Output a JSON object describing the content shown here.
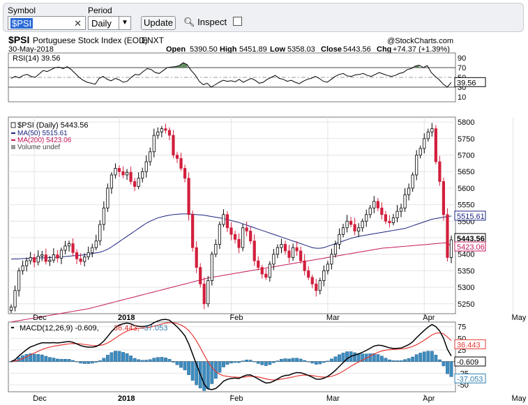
{
  "toolbar": {
    "symbol_label": "Symbol",
    "symbol_value": "$PSI",
    "period_label": "Period",
    "period_value": "Daily",
    "update_label": "Update",
    "inspect_label": "Inspect"
  },
  "header": {
    "ticker": "$PSI",
    "name": "Portuguese Stock Index (EOD)",
    "exchange": "ENXT",
    "date": "30-May-2018",
    "watermark": "@StockCharts.com",
    "open_label": "Open",
    "open": "5390.50",
    "high_label": "High",
    "high": "5451.89",
    "low_label": "Low",
    "low": "5358.03",
    "close_label": "Close",
    "close": "5443.56",
    "chg_label": "Chg",
    "chg": "+74.37 (+1.39%)"
  },
  "chart_data": [
    {
      "type": "line",
      "panel": "rsi",
      "title": "RSI(14) 39.56",
      "ylim": [
        0,
        100
      ],
      "ticks": [
        "90",
        "70",
        "50",
        "30",
        "10"
      ],
      "tick_values": [
        90,
        70,
        50,
        30,
        10
      ],
      "reference_lines": [
        70,
        50,
        30
      ],
      "last_value_label": "39.56",
      "series": [
        {
          "values": [
            48,
            52,
            49,
            54,
            56,
            52,
            50,
            57,
            64,
            62,
            66,
            70,
            71,
            68,
            72,
            66,
            58,
            50,
            44,
            40,
            38,
            36,
            48,
            52,
            46,
            43,
            48,
            45,
            40,
            42,
            50,
            56,
            55,
            62,
            68,
            66,
            60,
            58,
            64,
            70,
            71,
            72,
            74,
            80,
            76,
            64,
            55,
            42,
            35,
            38,
            30,
            35,
            40,
            44,
            42,
            43,
            41,
            46,
            40,
            44,
            48,
            44,
            38,
            40,
            46,
            50,
            54,
            48,
            46,
            42,
            44,
            40,
            37,
            42,
            46,
            48,
            52,
            48,
            42,
            40,
            46,
            52,
            56,
            58,
            53,
            52,
            55,
            56,
            58,
            54,
            52,
            56,
            60,
            57,
            54,
            52,
            54,
            58,
            60,
            66,
            68,
            73,
            75,
            70,
            74,
            60,
            52,
            45,
            36,
            30,
            39.56
          ]
        }
      ]
    },
    {
      "type": "candlestick",
      "panel": "price",
      "legend": [
        "$PSI (Daily) 5443.56",
        "MA(50) 5515.61",
        "MA(200) 5423.06",
        "Volume undef"
      ],
      "ylim": [
        5220,
        5815
      ],
      "ticks": [
        "5800",
        "5750",
        "5700",
        "5650",
        "5600",
        "5550",
        "5500",
        "5450",
        "5400",
        "5350",
        "5300",
        "5250"
      ],
      "tick_values": [
        5800,
        5750,
        5700,
        5650,
        5600,
        5550,
        5500,
        5450,
        5400,
        5350,
        5300,
        5250
      ],
      "last_labels": {
        "close": "5443.56",
        "ma50": "5515.61",
        "ma200": "5423.06"
      },
      "close": [
        5240,
        5290,
        5350,
        5365,
        5380,
        5390,
        5376,
        5394,
        5398,
        5378,
        5382,
        5398,
        5388,
        5412,
        5425,
        5432,
        5405,
        5386,
        5378,
        5392,
        5405,
        5420,
        5440,
        5490,
        5540,
        5600,
        5640,
        5660,
        5650,
        5640,
        5648,
        5620,
        5605,
        5630,
        5650,
        5680,
        5710,
        5760,
        5770,
        5780,
        5775,
        5760,
        5700,
        5690,
        5660,
        5630,
        5520,
        5420,
        5360,
        5310,
        5250,
        5320,
        5400,
        5430,
        5490,
        5520,
        5480,
        5460,
        5445,
        5420,
        5480,
        5470,
        5440,
        5380,
        5360,
        5340,
        5330,
        5370,
        5400,
        5420,
        5430,
        5410,
        5390,
        5420,
        5410,
        5380,
        5350,
        5330,
        5310,
        5290,
        5320,
        5350,
        5370,
        5400,
        5430,
        5460,
        5480,
        5500,
        5490,
        5470,
        5480,
        5500,
        5520,
        5540,
        5560,
        5540,
        5520,
        5500,
        5495,
        5510,
        5530,
        5540,
        5580,
        5600,
        5640,
        5700,
        5720,
        5750,
        5770,
        5780,
        5680,
        5620,
        5520,
        5390,
        5443.56
      ],
      "ma50": [
        5385,
        5386,
        5386,
        5387,
        5387,
        5388,
        5388,
        5389,
        5389,
        5389,
        5390,
        5390,
        5391,
        5392,
        5393,
        5394,
        5395,
        5396,
        5397,
        5398,
        5400,
        5402,
        5404,
        5406,
        5410,
        5415,
        5422,
        5430,
        5438,
        5446,
        5454,
        5462,
        5470,
        5478,
        5486,
        5494,
        5500,
        5505,
        5510,
        5513,
        5516,
        5518,
        5520,
        5521,
        5522,
        5522,
        5522,
        5521,
        5520,
        5519,
        5518,
        5516,
        5514,
        5512,
        5510,
        5508,
        5505,
        5502,
        5499,
        5496,
        5492,
        5488,
        5484,
        5480,
        5476,
        5472,
        5468,
        5464,
        5460,
        5456,
        5452,
        5448,
        5444,
        5440,
        5436,
        5432,
        5428,
        5424,
        5420,
        5418,
        5418,
        5420,
        5424,
        5428,
        5432,
        5436,
        5440,
        5444,
        5448,
        5451,
        5454,
        5456,
        5458,
        5460,
        5462,
        5464,
        5466,
        5468,
        5470,
        5472,
        5474,
        5476,
        5478,
        5482,
        5486,
        5490,
        5494,
        5498,
        5502,
        5506,
        5508,
        5510,
        5512,
        5514,
        5515.61
      ],
      "ma200": [
        5195,
        5197,
        5199,
        5201,
        5203,
        5205,
        5207,
        5209,
        5211,
        5213,
        5215,
        5217,
        5219,
        5221,
        5223,
        5225,
        5227,
        5229,
        5231,
        5233,
        5235,
        5238,
        5241,
        5244,
        5247,
        5250,
        5253,
        5256,
        5259,
        5262,
        5265,
        5268,
        5271,
        5274,
        5277,
        5280,
        5283,
        5286,
        5289,
        5292,
        5295,
        5298,
        5301,
        5304,
        5307,
        5310,
        5313,
        5316,
        5319,
        5322,
        5325,
        5328,
        5330,
        5332,
        5334,
        5336,
        5338,
        5340,
        5342,
        5344,
        5346,
        5348,
        5350,
        5352,
        5354,
        5356,
        5358,
        5360,
        5362,
        5364,
        5366,
        5368,
        5370,
        5372,
        5374,
        5376,
        5378,
        5380,
        5382,
        5384,
        5386,
        5388,
        5390,
        5392,
        5394,
        5396,
        5398,
        5400,
        5402,
        5404,
        5406,
        5408,
        5410,
        5412,
        5414,
        5416,
        5418,
        5419,
        5420,
        5421,
        5422,
        5423,
        5424,
        5425,
        5426,
        5427,
        5428,
        5429,
        5430,
        5431,
        5432,
        5433,
        5434,
        5435,
        5423.06
      ]
    },
    {
      "type": "bar+line",
      "panel": "macd",
      "title": "MACD(12,26,9) -0.609, 36.443, -37.053",
      "title_parts": [
        "MACD(12,26,9) -0.609,",
        "36.443,",
        "-37.053"
      ],
      "ylim": [
        -65,
        85
      ],
      "ticks": [
        "75",
        "50",
        "25",
        "0",
        "-25",
        "-50"
      ],
      "tick_values": [
        75,
        50,
        25,
        0,
        -25,
        -50
      ],
      "last_labels": {
        "signal": "36.443",
        "macd": "-0.609",
        "hist": "-37.053"
      },
      "x_labels": [
        "Dec",
        "2018",
        "Feb",
        "Mar",
        "Apr",
        "May"
      ],
      "x_label_index": [
        6,
        28,
        57,
        82,
        107,
        130
      ]
    }
  ]
}
